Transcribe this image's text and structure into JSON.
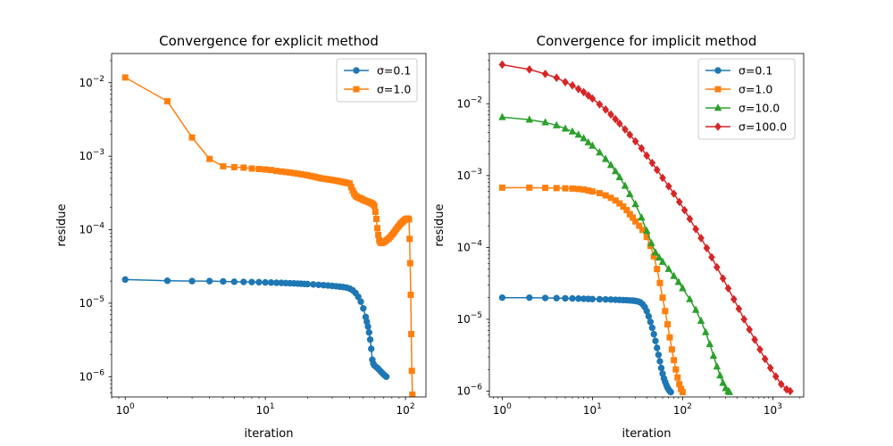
{
  "chart_data": [
    {
      "type": "line",
      "title": "Convergence for explicit method",
      "xlabel": "iteration",
      "ylabel": "residue",
      "xscale": "log",
      "yscale": "log",
      "xlim": [
        0.8,
        140
      ],
      "ylim": [
        5.3e-07,
        0.025
      ],
      "grid": false,
      "legend_position": "top-right",
      "x_ticks": [
        {
          "value": 1,
          "label": "10",
          "exp": "0"
        },
        {
          "value": 10,
          "label": "10",
          "exp": "1"
        },
        {
          "value": 100,
          "label": "10",
          "exp": "2"
        }
      ],
      "y_ticks": [
        {
          "value": 1e-06,
          "label": "10",
          "exp": "−6"
        },
        {
          "value": 1e-05,
          "label": "10",
          "exp": "−5"
        },
        {
          "value": 0.0001,
          "label": "10",
          "exp": "−4"
        },
        {
          "value": 0.001,
          "label": "10",
          "exp": "−3"
        },
        {
          "value": 0.01,
          "label": "10",
          "exp": "−2"
        }
      ],
      "series": [
        {
          "name": "σ=0.1",
          "color": "#1f77b4",
          "marker": "circle",
          "x": [
            1,
            2,
            3,
            4,
            5,
            6,
            7,
            8,
            9,
            10,
            11,
            12,
            13,
            14,
            15,
            16,
            17,
            18,
            19,
            20,
            22,
            24,
            26,
            28,
            30,
            32,
            34,
            36,
            38,
            40,
            42,
            44,
            46,
            48,
            50,
            52,
            53,
            54,
            55,
            56,
            57,
            58,
            59,
            60,
            62,
            64,
            66,
            68,
            70,
            72,
            73
          ],
          "y": [
            2.1e-05,
            2.02e-05,
            2e-05,
            2e-05,
            1.98e-05,
            1.96e-05,
            1.95e-05,
            1.94e-05,
            1.93e-05,
            1.92e-05,
            1.91e-05,
            1.9e-05,
            1.89e-05,
            1.88e-05,
            1.87e-05,
            1.86e-05,
            1.85e-05,
            1.84e-05,
            1.83e-05,
            1.82e-05,
            1.8e-05,
            1.78e-05,
            1.76e-05,
            1.74e-05,
            1.72e-05,
            1.7e-05,
            1.68e-05,
            1.66e-05,
            1.63e-05,
            1.58e-05,
            1.5e-05,
            1.38e-05,
            1.22e-05,
            1.05e-05,
            8.5e-06,
            6.5e-06,
            5.6e-06,
            4.8e-06,
            4e-06,
            3.2e-06,
            2.4e-06,
            1.7e-06,
            1.5e-06,
            1.42e-06,
            1.35e-06,
            1.28e-06,
            1.2e-06,
            1.13e-06,
            1.07e-06,
            1.02e-06,
            1e-06
          ]
        },
        {
          "name": "σ=1.0",
          "color": "#ff7f0e",
          "marker": "square",
          "x": [
            1,
            2,
            3,
            4,
            5,
            6,
            7,
            8,
            9,
            10,
            11,
            12,
            13,
            14,
            15,
            16,
            17,
            18,
            19,
            20,
            21,
            22,
            23,
            24,
            25,
            26,
            27,
            28,
            29,
            30,
            31,
            32,
            33,
            34,
            35,
            36,
            37,
            38,
            39,
            40,
            41,
            42,
            43,
            44,
            45,
            46,
            47,
            48,
            49,
            50,
            51,
            52,
            53,
            54,
            55,
            56,
            57,
            58,
            59,
            60,
            61,
            62,
            63,
            64,
            65,
            66,
            67,
            68,
            69,
            70,
            72,
            74,
            76,
            78,
            80,
            82,
            84,
            86,
            88,
            90,
            92,
            94,
            96,
            98,
            100,
            102,
            104,
            106,
            107,
            108,
            109,
            110,
            111,
            112
          ],
          "y": [
            0.0118,
            0.0056,
            0.0018,
            0.00092,
            0.00073,
            0.00071,
            0.0007,
            0.00068,
            0.00067,
            0.00066,
            0.00065,
            0.00063,
            0.00062,
            0.00061,
            0.0006,
            0.00059,
            0.00058,
            0.00057,
            0.00056,
            0.00055,
            0.00054,
            0.00053,
            0.00052,
            0.00051,
            0.0005,
            0.000495,
            0.00049,
            0.000485,
            0.00048,
            0.000475,
            0.00047,
            0.000465,
            0.00046,
            0.000455,
            0.00045,
            0.000445,
            0.00044,
            0.000435,
            0.00043,
            0.000425,
            0.00038,
            0.00034,
            0.00031,
            0.00029,
            0.00028,
            0.000275,
            0.00027,
            0.000265,
            0.00026,
            0.000255,
            0.00025,
            0.000247,
            0.000244,
            0.00024,
            0.000237,
            0.000234,
            0.00023,
            0.000225,
            0.00022,
            0.00021,
            0.000175,
            0.00014,
            0.000105,
            8.5e-05,
            7.2e-05,
            6.8e-05,
            6.6e-05,
            6.6e-05,
            6.7e-05,
            6.8e-05,
            7e-05,
            7.3e-05,
            7.6e-05,
            8e-05,
            8.5e-05,
            9e-05,
            9.6e-05,
            0.000102,
            0.000108,
            0.000114,
            0.00012,
            0.000125,
            0.00013,
            0.000135,
            0.000139,
            0.000141,
            0.000142,
            0.000138,
            7.5e-05,
            3.5e-05,
            1.3e-05,
            3.8e-06,
            1.2e-06,
            5.7e-07
          ]
        }
      ]
    },
    {
      "type": "line",
      "title": "Convergence for implicit method",
      "xlabel": "iteration",
      "ylabel": "residue",
      "xscale": "log",
      "yscale": "log",
      "xlim": [
        0.72,
        2200
      ],
      "ylim": [
        8.3e-07,
        0.05
      ],
      "grid": false,
      "legend_position": "top-right",
      "x_ticks": [
        {
          "value": 1,
          "label": "10",
          "exp": "0"
        },
        {
          "value": 10,
          "label": "10",
          "exp": "1"
        },
        {
          "value": 100,
          "label": "10",
          "exp": "2"
        },
        {
          "value": 1000,
          "label": "10",
          "exp": "3"
        }
      ],
      "y_ticks": [
        {
          "value": 1e-06,
          "label": "10",
          "exp": "−6"
        },
        {
          "value": 1e-05,
          "label": "10",
          "exp": "−5"
        },
        {
          "value": 0.0001,
          "label": "10",
          "exp": "−4"
        },
        {
          "value": 0.001,
          "label": "10",
          "exp": "−3"
        },
        {
          "value": 0.01,
          "label": "10",
          "exp": "−2"
        }
      ],
      "series": [
        {
          "name": "σ=0.1",
          "color": "#1f77b4",
          "marker": "circle",
          "x": [
            1,
            2,
            3,
            4,
            5,
            6,
            7,
            8,
            9,
            10,
            12,
            14,
            16,
            18,
            20,
            22,
            24,
            26,
            28,
            30,
            32,
            34,
            36,
            38,
            40,
            42,
            44,
            46,
            48,
            50,
            52,
            54,
            56,
            58,
            60,
            62,
            64,
            66,
            68,
            70,
            72,
            74
          ],
          "y": [
            2e-05,
            2e-05,
            1.98e-05,
            1.97e-05,
            1.96e-05,
            1.95e-05,
            1.94e-05,
            1.93e-05,
            1.92e-05,
            1.91e-05,
            1.9e-05,
            1.89e-05,
            1.88e-05,
            1.87e-05,
            1.86e-05,
            1.85e-05,
            1.84e-05,
            1.83e-05,
            1.82e-05,
            1.8e-05,
            1.77e-05,
            1.72e-05,
            1.62e-05,
            1.48e-05,
            1.3e-05,
            1.1e-05,
            9.2e-06,
            7.6e-06,
            6.2e-06,
            5e-06,
            4e-06,
            3.2e-06,
            2.6e-06,
            2.1e-06,
            1.75e-06,
            1.5e-06,
            1.35e-06,
            1.22e-06,
            1.12e-06,
            1.05e-06,
            1e-06,
            9.7e-07
          ]
        },
        {
          "name": "σ=1.0",
          "color": "#ff7f0e",
          "marker": "square",
          "x": [
            1,
            2,
            3,
            4,
            5,
            6,
            7,
            8,
            9,
            10,
            12,
            14,
            16,
            18,
            20,
            22,
            24,
            26,
            28,
            30,
            33,
            36,
            40,
            44,
            48,
            52,
            56,
            60,
            64,
            68,
            72,
            76,
            80,
            84,
            88,
            92,
            96,
            100
          ],
          "y": [
            0.00068,
            0.00068,
            0.000675,
            0.00067,
            0.000665,
            0.00066,
            0.00065,
            0.00064,
            0.00062,
            0.0006,
            0.00057,
            0.00053,
            0.00049,
            0.00045,
            0.00041,
            0.00037,
            0.00033,
            0.00029,
            0.00026,
            0.00023,
            0.0002,
            0.000175,
            0.00014,
            0.000105,
            7.5e-05,
            5e-05,
            3.2e-05,
            2e-05,
            1.3e-05,
            8.5e-06,
            5.6e-06,
            3.8e-06,
            2.7e-06,
            2e-06,
            1.55e-06,
            1.25e-06,
            1.07e-06,
            9.7e-07
          ]
        },
        {
          "name": "σ=10.0",
          "color": "#2ca02c",
          "marker": "triangle",
          "x": [
            1,
            2,
            3,
            4,
            5,
            6,
            7,
            8,
            9,
            10,
            12,
            14,
            16,
            18,
            20,
            23,
            26,
            30,
            35,
            40,
            45,
            50,
            55,
            60,
            70,
            80,
            90,
            100,
            120,
            140,
            160,
            180,
            200,
            220,
            240,
            260,
            280,
            300,
            320,
            330
          ],
          "y": [
            0.0065,
            0.006,
            0.0055,
            0.005,
            0.0045,
            0.0041,
            0.0037,
            0.0033,
            0.0029,
            0.0026,
            0.0021,
            0.0017,
            0.0014,
            0.00115,
            0.00095,
            0.00072,
            0.00055,
            0.0004,
            0.00026,
            0.00017,
            0.000115,
            8.5e-05,
            7.2e-05,
            6.3e-05,
            5e-05,
            4e-05,
            3.3e-05,
            2.7e-05,
            1.9e-05,
            1.35e-05,
            9.5e-06,
            6.6e-06,
            4.5e-06,
            3.1e-06,
            2.2e-06,
            1.65e-06,
            1.3e-06,
            1.1e-06,
            1e-06,
            9.7e-07
          ]
        },
        {
          "name": "σ=100.0",
          "color": "#d62728",
          "marker": "diamond",
          "x": [
            1,
            2,
            3,
            4,
            5,
            6,
            7,
            8,
            9,
            10,
            12,
            14,
            16,
            18,
            20,
            23,
            26,
            30,
            35,
            40,
            46,
            52,
            60,
            70,
            80,
            92,
            105,
            120,
            140,
            160,
            185,
            210,
            240,
            280,
            320,
            370,
            420,
            480,
            550,
            630,
            720,
            820,
            940,
            1080,
            1240,
            1420,
            1560
          ],
          "y": [
            0.035,
            0.03,
            0.026,
            0.023,
            0.02,
            0.018,
            0.016,
            0.0145,
            0.013,
            0.0118,
            0.0098,
            0.0083,
            0.0071,
            0.0061,
            0.0053,
            0.0044,
            0.0037,
            0.003,
            0.0024,
            0.0019,
            0.0015,
            0.0012,
            0.00093,
            0.00071,
            0.00056,
            0.00043,
            0.00033,
            0.00025,
            0.00018,
            0.000135,
            9.8e-05,
            7.3e-05,
            5.3e-05,
            3.7e-05,
            2.7e-05,
            1.9e-05,
            1.4e-05,
            1e-05,
            7.2e-06,
            5.2e-06,
            3.8e-06,
            2.8e-06,
            2.1e-06,
            1.6e-06,
            1.25e-06,
            1.06e-06,
            1e-06
          ]
        }
      ]
    }
  ]
}
